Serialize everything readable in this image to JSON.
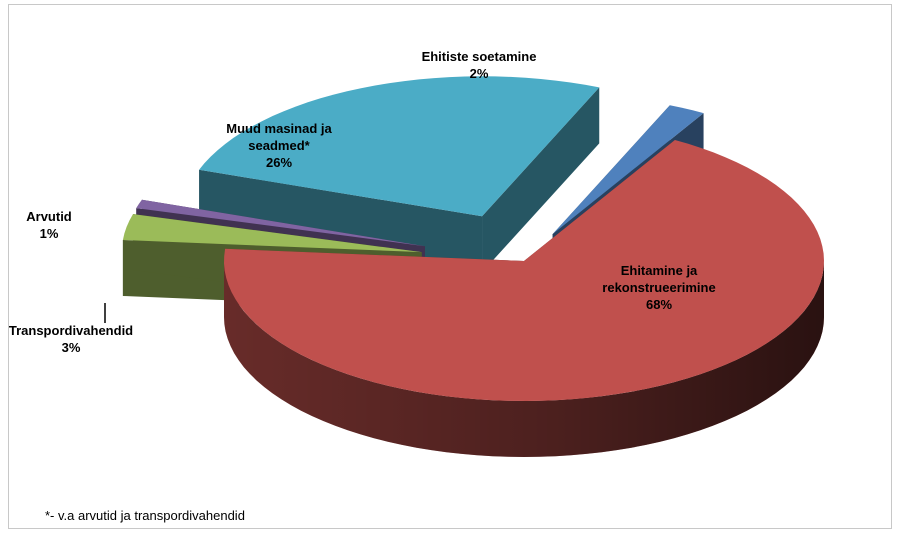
{
  "chart_data": {
    "type": "pie",
    "title": "",
    "style": "3d-exploded",
    "legend": "none",
    "slices": [
      {
        "label": "Ehitiste soetamine",
        "label_lines": [
          "Ehitiste soetamine"
        ],
        "value": 2,
        "value_text": "2%",
        "color": "#4f81bd"
      },
      {
        "label": "Ehitamine ja rekonstrueerimine",
        "label_lines": [
          "Ehitamine ja",
          "rekonstrueerimine"
        ],
        "value": 68,
        "value_text": "68%",
        "color": "#c0504d"
      },
      {
        "label": "Transpordivahendid",
        "label_lines": [
          "Transpordivahendid"
        ],
        "value": 3,
        "value_text": "3%",
        "color": "#9bbb59"
      },
      {
        "label": "Arvutid",
        "label_lines": [
          "Arvutid"
        ],
        "value": 1,
        "value_text": "1%",
        "color": "#8064a2"
      },
      {
        "label": "Muud masinad ja seadmed*",
        "label_lines": [
          "Muud masinad ja",
          "seadmed*"
        ],
        "value": 26,
        "value_text": "26%",
        "color": "#4bacc6"
      }
    ],
    "footnote": "*- v.a arvutid ja transpordivahendid"
  }
}
